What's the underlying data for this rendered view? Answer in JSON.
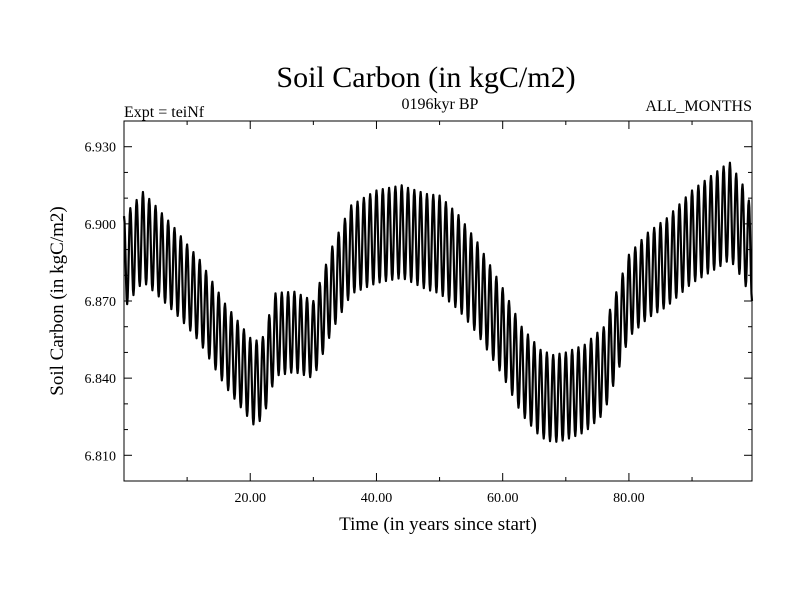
{
  "chart_data": {
    "type": "line",
    "title": "Soil Carbon (in kgC/m2)",
    "subtitle_left": "Expt = teiNf",
    "subtitle_center": "0196kyr BP",
    "subtitle_right": "ALL_MONTHS",
    "xlabel": "Time (in years since start)",
    "ylabel": "Soil Carbon (in kgC/m2)",
    "xlim": [
      0,
      99.5
    ],
    "ylim": [
      6.8,
      6.94
    ],
    "xticks": [
      20,
      40,
      60,
      80
    ],
    "xtick_labels": [
      "20.00",
      "40.00",
      "60.00",
      "80.00"
    ],
    "yticks": [
      6.81,
      6.84,
      6.87,
      6.9,
      6.93
    ],
    "ytick_labels": [
      "6.810",
      "6.840",
      "6.870",
      "6.900",
      "6.930"
    ],
    "series": [
      {
        "name": "Soil Carbon",
        "sampling": "monthly",
        "cycle_period_years": 1,
        "description": "annual seasonal oscillation around a slowly varying mean",
        "mean_curve": {
          "x": [
            0,
            3,
            5,
            8,
            12,
            16,
            19,
            20.5,
            22,
            24,
            27,
            30,
            33,
            36,
            40,
            44,
            48,
            50,
            53,
            56,
            60,
            63,
            66,
            68,
            70,
            73,
            76,
            78,
            80,
            83,
            86,
            90,
            93,
            96,
            98,
            99.5
          ],
          "y": [
            6.885,
            6.895,
            6.89,
            6.882,
            6.87,
            6.853,
            6.843,
            6.838,
            6.84,
            6.857,
            6.858,
            6.855,
            6.875,
            6.89,
            6.895,
            6.897,
            6.893,
            6.892,
            6.885,
            6.875,
            6.858,
            6.843,
            6.834,
            6.832,
            6.833,
            6.836,
            6.843,
            6.857,
            6.872,
            6.88,
            6.885,
            6.895,
            6.9,
            6.905,
            6.897,
            6.888
          ]
        },
        "amplitude_curve": {
          "x": [
            0,
            5,
            10,
            15,
            20,
            25,
            30,
            35,
            40,
            45,
            50,
            55,
            60,
            65,
            70,
            75,
            80,
            85,
            90,
            95,
            99.5
          ],
          "y": [
            0.018,
            0.017,
            0.016,
            0.016,
            0.016,
            0.016,
            0.015,
            0.017,
            0.018,
            0.018,
            0.019,
            0.018,
            0.017,
            0.017,
            0.017,
            0.017,
            0.016,
            0.017,
            0.018,
            0.019,
            0.018
          ]
        }
      }
    ]
  }
}
